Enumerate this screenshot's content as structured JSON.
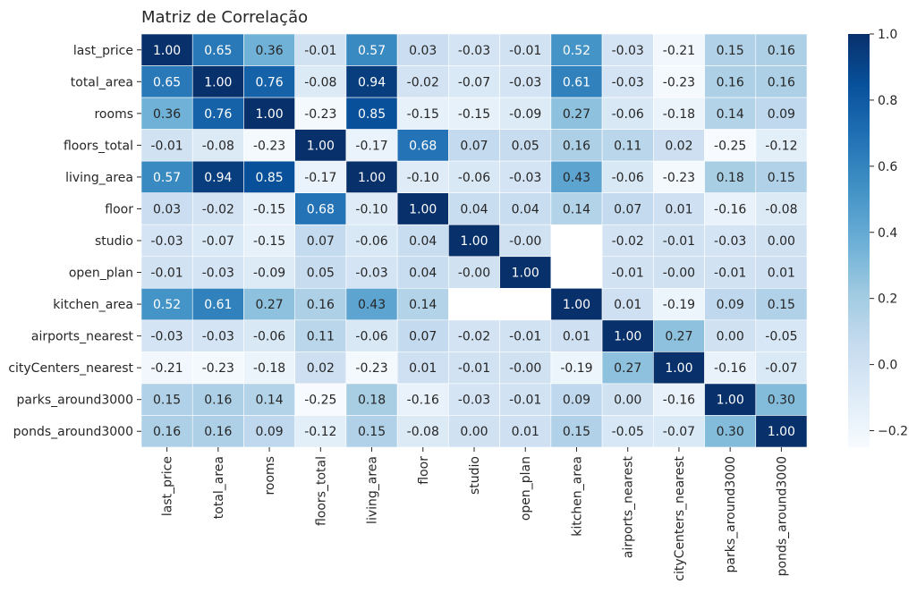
{
  "chart_data": {
    "type": "heatmap",
    "title": "Matriz de Correlação",
    "xlabel": "",
    "ylabel": "",
    "row_labels": [
      "last_price",
      "total_area",
      "rooms",
      "floors_total",
      "living_area",
      "floor",
      "studio",
      "open_plan",
      "kitchen_area",
      "airports_nearest",
      "cityCenters_nearest",
      "parks_around3000",
      "ponds_around3000"
    ],
    "col_labels": [
      "last_price",
      "total_area",
      "rooms",
      "floors_total",
      "living_area",
      "floor",
      "studio",
      "open_plan",
      "kitchen_area",
      "airports_nearest",
      "cityCenters_nearest",
      "parks_around3000",
      "ponds_around3000"
    ],
    "values": [
      [
        1.0,
        0.65,
        0.36,
        -0.01,
        0.57,
        0.03,
        -0.03,
        -0.01,
        0.52,
        -0.03,
        -0.21,
        0.15,
        0.16
      ],
      [
        0.65,
        1.0,
        0.76,
        -0.08,
        0.94,
        -0.02,
        -0.07,
        -0.03,
        0.61,
        -0.03,
        -0.23,
        0.16,
        0.16
      ],
      [
        0.36,
        0.76,
        1.0,
        -0.23,
        0.85,
        -0.15,
        -0.15,
        -0.09,
        0.27,
        -0.06,
        -0.18,
        0.14,
        0.09
      ],
      [
        -0.01,
        -0.08,
        -0.23,
        1.0,
        -0.17,
        0.68,
        0.07,
        0.05,
        0.16,
        0.11,
        0.02,
        -0.25,
        -0.12
      ],
      [
        0.57,
        0.94,
        0.85,
        -0.17,
        1.0,
        -0.1,
        -0.06,
        -0.03,
        0.43,
        -0.06,
        -0.23,
        0.18,
        0.15
      ],
      [
        0.03,
        -0.02,
        -0.15,
        0.68,
        -0.1,
        1.0,
        0.04,
        0.04,
        0.14,
        0.07,
        0.01,
        -0.16,
        -0.08
      ],
      [
        -0.03,
        -0.07,
        -0.15,
        0.07,
        -0.06,
        0.04,
        1.0,
        -0.0,
        null,
        -0.02,
        -0.01,
        -0.03,
        0.0
      ],
      [
        -0.01,
        -0.03,
        -0.09,
        0.05,
        -0.03,
        0.04,
        -0.0,
        1.0,
        null,
        -0.01,
        -0.0,
        -0.01,
        0.01
      ],
      [
        0.52,
        0.61,
        0.27,
        0.16,
        0.43,
        0.14,
        null,
        null,
        1.0,
        0.01,
        -0.19,
        0.09,
        0.15
      ],
      [
        -0.03,
        -0.03,
        -0.06,
        0.11,
        -0.06,
        0.07,
        -0.02,
        -0.01,
        0.01,
        1.0,
        0.27,
        0.0,
        -0.05
      ],
      [
        -0.21,
        -0.23,
        -0.18,
        0.02,
        -0.23,
        0.01,
        -0.01,
        -0.0,
        -0.19,
        0.27,
        1.0,
        -0.16,
        -0.07
      ],
      [
        0.15,
        0.16,
        0.14,
        -0.25,
        0.18,
        -0.16,
        -0.03,
        -0.01,
        0.09,
        0.0,
        -0.16,
        1.0,
        0.3
      ],
      [
        0.16,
        0.16,
        0.09,
        -0.12,
        0.15,
        -0.08,
        0.0,
        0.01,
        0.15,
        -0.05,
        -0.07,
        0.3,
        1.0
      ]
    ],
    "value_format": "0.00",
    "colormap": "Blues",
    "vmin": -0.25,
    "vmax": 1.0,
    "colorbar_ticks": [
      "1.0",
      "0.8",
      "0.6",
      "0.4",
      "0.2",
      "0.0",
      "−0.2"
    ],
    "colorbar_tick_values": [
      1.0,
      0.8,
      0.6,
      0.4,
      0.2,
      0.0,
      -0.2
    ],
    "missing_cells_blank": true,
    "cell_border_color": "#ffffff",
    "text_color_light": "#ffffff",
    "text_color_dark": "#262626"
  }
}
